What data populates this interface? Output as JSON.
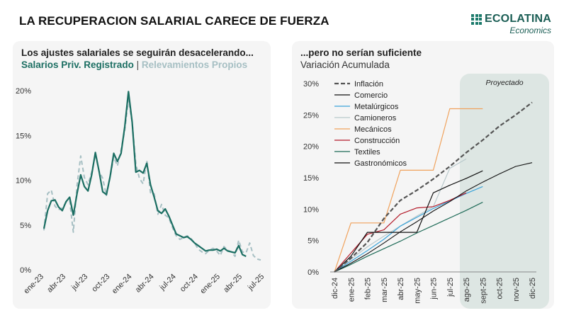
{
  "header": {
    "title": "LA RECUPERACION SALARIAL CARECE DE FUERZA"
  },
  "logo": {
    "name": "ECOLATINA",
    "subtitle": "Economics",
    "color": "#1b6e62"
  },
  "left_panel": {
    "title": "Los ajustes salariales se seguirán desacelerando...",
    "subtitle_series1": "Salarios Priv. Registrado",
    "subtitle_sep": "|",
    "subtitle_series2": "Relevamientos Propios"
  },
  "right_panel": {
    "title": "...pero no serían suficiente",
    "subtitle": "Variación Acumulada",
    "projection_label": "Proyectado"
  },
  "chart_data": [
    {
      "type": "line",
      "title": "Los ajustes salariales se seguirán desacelerando...",
      "x_ticks": [
        "ene-23",
        "abr-23",
        "jul-23",
        "oct-23",
        "ene-24",
        "abr-24",
        "jul-24",
        "oct-24",
        "ene-25",
        "abr-25",
        "jul-25"
      ],
      "ylim": [
        0,
        20
      ],
      "y_ticks": [
        "0%",
        "5%",
        "10%",
        "15%",
        "20%"
      ],
      "grid": false,
      "series": [
        {
          "name": "Salarios Priv. Registrado",
          "color": "#1b6e62",
          "style": "solid",
          "values": [
            4.6,
            6.6,
            7.7,
            7.8,
            7.0,
            6.6,
            7.6,
            8.1,
            6.1,
            8.5,
            10.6,
            9.3,
            8.8,
            10.6,
            13.1,
            11.0,
            8.7,
            8.4,
            10.4,
            13.0,
            12.1,
            13.0,
            16.0,
            19.9,
            16.5,
            10.9,
            11.1,
            10.8,
            11.9,
            9.5,
            8.1,
            6.6,
            6.3,
            6.8,
            6.0,
            5.0,
            4.0,
            3.8,
            3.6,
            3.7,
            3.4,
            3.0,
            2.7,
            2.4,
            2.1,
            2.2,
            2.2,
            2.3,
            2.1,
            2.4,
            2.1,
            2.0,
            1.9,
            2.7,
            1.7,
            1.5,
            null,
            null,
            null,
            null
          ]
        },
        {
          "name": "Relevamientos Propios",
          "color": "#a6bfc3",
          "style": "dashed",
          "values": [
            4.4,
            8.5,
            8.9,
            7.1,
            6.7,
            6.9,
            7.5,
            7.7,
            4.2,
            9.4,
            12.7,
            10.3,
            9.5,
            10.9,
            12.9,
            11.0,
            10.2,
            8.3,
            10.3,
            12.6,
            11.6,
            13.4,
            15.6,
            19.0,
            16.5,
            11.8,
            10.2,
            9.6,
            12.2,
            8.6,
            8.5,
            6.2,
            7.3,
            6.1,
            5.8,
            4.7,
            3.8,
            3.4,
            3.6,
            3.8,
            3.5,
            3.0,
            2.3,
            2.0,
            1.8,
            2.2,
            2.4,
            2.1,
            1.6,
            2.6,
            2.2,
            2.0,
            1.5,
            3.3,
            2.0,
            1.9,
            3.0,
            1.6,
            1.2,
            1.1
          ]
        }
      ]
    },
    {
      "type": "line",
      "title": "...pero no serían suficiente",
      "subtitle": "Variación Acumulada",
      "x_ticks": [
        "dic-24",
        "ene-25",
        "feb-25",
        "mar-25",
        "abr-25",
        "may-25",
        "jun-25",
        "jul-25",
        "ago-25",
        "sept-25",
        "oct-25",
        "nov-25",
        "dic-25"
      ],
      "ylim": [
        0,
        30
      ],
      "y_ticks": [
        "0%",
        "5%",
        "10%",
        "15%",
        "20%",
        "25%",
        "30%"
      ],
      "projection_from": "ago-25",
      "series": [
        {
          "name": "Inflación",
          "color": "#555555",
          "style": "dashed",
          "width": 2.2,
          "values": [
            0,
            2.2,
            4.7,
            8.5,
            11.4,
            13.0,
            14.8,
            16.8,
            19.0,
            21.0,
            23.2,
            25.0,
            27.0
          ]
        },
        {
          "name": "Comercio",
          "color": "#111111",
          "style": "solid",
          "width": 1.2,
          "values": [
            0,
            2.5,
            6.3,
            6.3,
            6.3,
            6.3,
            12.6,
            13.8,
            14.9,
            16.1,
            null,
            null,
            null
          ]
        },
        {
          "name": "Metalúrgicos",
          "color": "#3aa3d9",
          "style": "solid",
          "width": 1.2,
          "values": [
            0,
            1.7,
            3.4,
            5.2,
            7.3,
            8.7,
            10.1,
            11.3,
            12.5,
            13.6,
            null,
            null,
            null
          ]
        },
        {
          "name": "Camioneros",
          "color": "#b9c9cc",
          "style": "solid",
          "width": 1.2,
          "values": [
            0,
            2.0,
            4.0,
            5.7,
            7.3,
            8.9,
            10.4,
            16.5,
            18.0,
            null,
            null,
            null,
            null
          ]
        },
        {
          "name": "Mecánicos",
          "color": "#f0a25c",
          "style": "solid",
          "width": 1.2,
          "values": [
            0,
            7.8,
            7.8,
            7.8,
            16.2,
            16.2,
            16.2,
            26.0,
            26.0,
            26.0,
            null,
            null,
            null
          ]
        },
        {
          "name": "Construcción",
          "color": "#b31b2a",
          "style": "solid",
          "width": 1.2,
          "values": [
            0,
            3.0,
            6.0,
            6.7,
            9.2,
            10.2,
            10.4,
            11.4,
            12.6,
            null,
            null,
            null,
            null
          ]
        },
        {
          "name": "Textiles",
          "color": "#1f6b58",
          "style": "solid",
          "width": 1.2,
          "values": [
            0,
            1.2,
            2.5,
            3.7,
            4.9,
            6.2,
            7.4,
            8.6,
            9.8,
            11.1,
            null,
            null,
            null
          ]
        },
        {
          "name": "Gastronómicos",
          "color": "#111111",
          "style": "solid",
          "width": 1.1,
          "values": [
            0,
            1.4,
            2.9,
            4.6,
            6.4,
            8.0,
            9.7,
            11.2,
            12.9,
            14.3,
            15.6,
            16.8,
            17.4
          ]
        }
      ]
    }
  ]
}
